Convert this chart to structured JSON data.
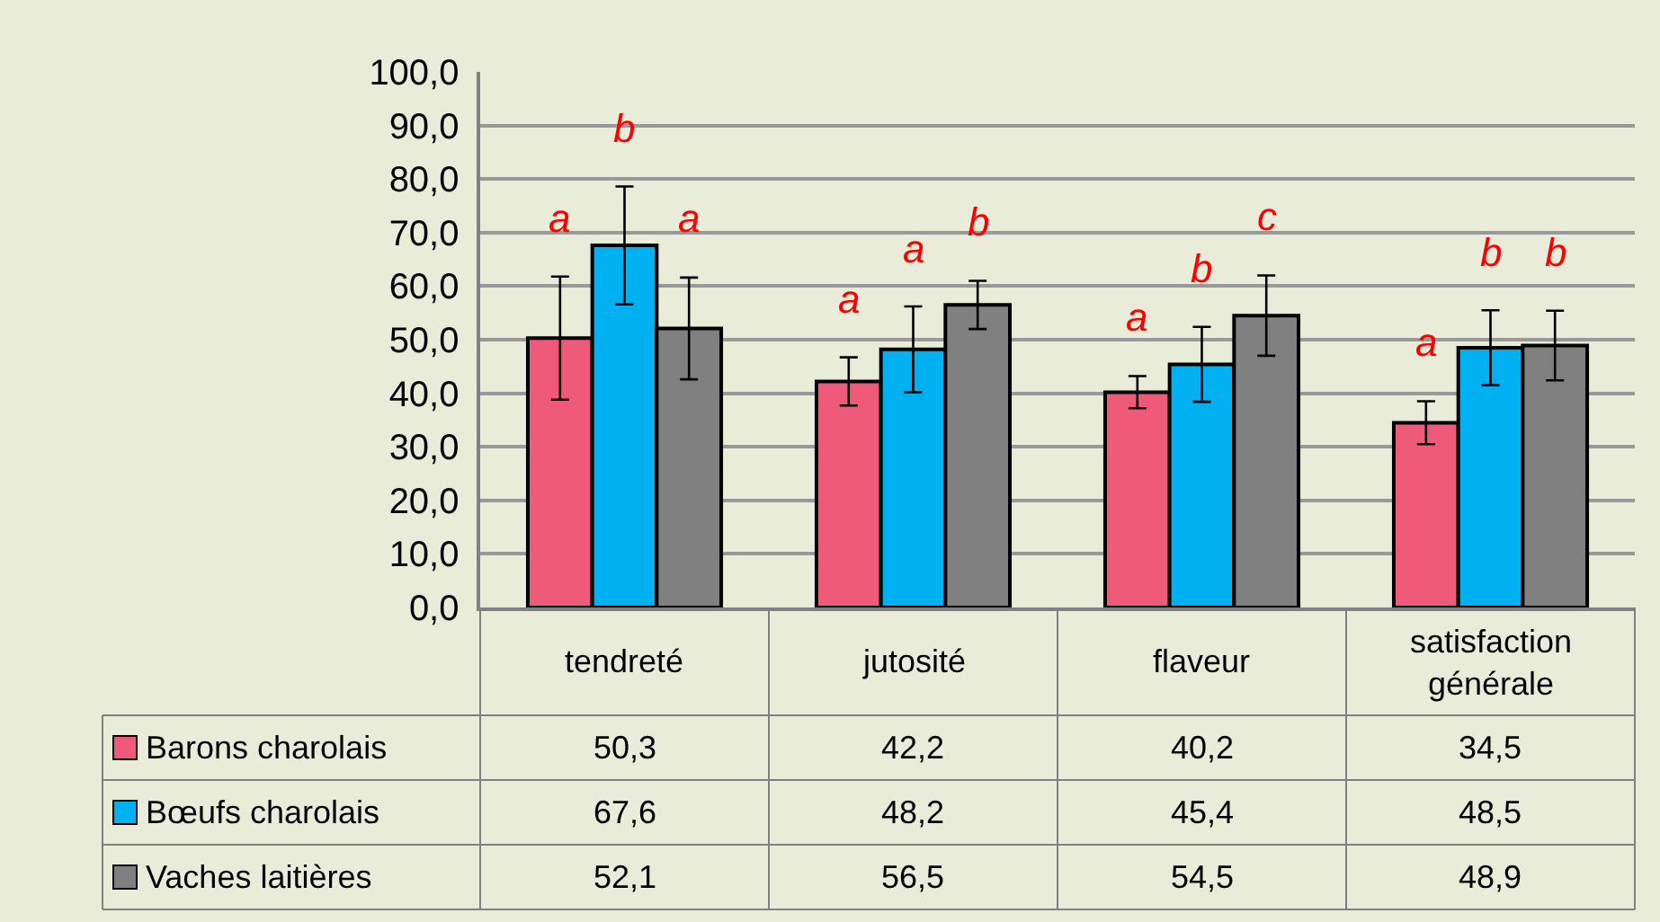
{
  "chart_data": {
    "type": "bar",
    "categories": [
      "tendreté",
      "jutosité",
      "flaveur",
      "satisfaction générale"
    ],
    "series": [
      {
        "name": "Barons charolais",
        "color": "#f05a7a",
        "values": [
          50.3,
          42.2,
          40.2,
          34.5
        ],
        "value_labels": [
          "50,3",
          "42,2",
          "40,2",
          "34,5"
        ],
        "errors": [
          11.5,
          4.5,
          3,
          4
        ]
      },
      {
        "name": "Bœufs charolais",
        "color": "#00b0f0",
        "values": [
          67.6,
          48.2,
          45.4,
          48.5
        ],
        "value_labels": [
          "67,6",
          "48,2",
          "45,4",
          "48,5"
        ],
        "errors": [
          11,
          8,
          7,
          7
        ]
      },
      {
        "name": "Vaches laitières",
        "color": "#808080",
        "values": [
          52.1,
          56.5,
          54.5,
          48.9
        ],
        "value_labels": [
          "52,1",
          "56,5",
          "54,5",
          "48,9"
        ],
        "errors": [
          9.5,
          4.5,
          7.5,
          6.5
        ]
      }
    ],
    "ylim": [
      0,
      100
    ],
    "yticks": [
      {
        "value": 0,
        "label": "0,0"
      },
      {
        "value": 10,
        "label": "10,0"
      },
      {
        "value": 20,
        "label": "20,0"
      },
      {
        "value": 30,
        "label": "30,0"
      },
      {
        "value": 40,
        "label": "40,0"
      },
      {
        "value": 50,
        "label": "50,0"
      },
      {
        "value": 60,
        "label": "60,0"
      },
      {
        "value": 70,
        "label": "70,0"
      },
      {
        "value": 80,
        "label": "80,0"
      },
      {
        "value": 90,
        "label": "90,0"
      },
      {
        "value": 100,
        "label": "100,0"
      }
    ],
    "grid": "y",
    "legend": "bottom left",
    "annotations": [
      "a",
      "b",
      "a",
      "a",
      "a",
      "b",
      "a",
      "b",
      "c",
      "a",
      "b",
      "b"
    ]
  }
}
